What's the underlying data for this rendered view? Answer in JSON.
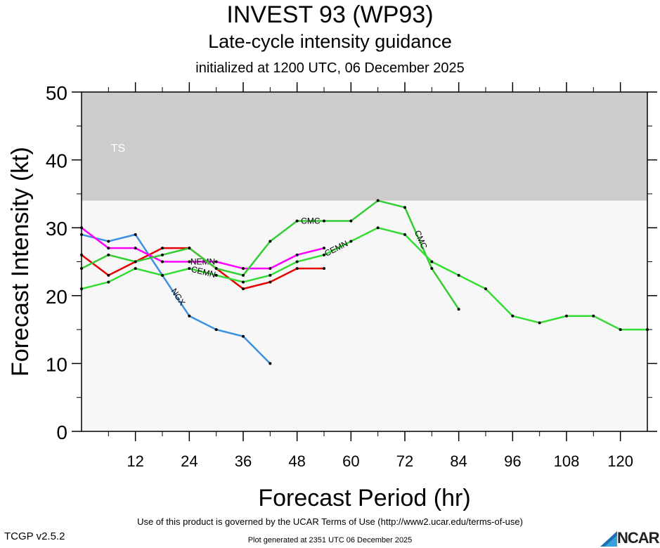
{
  "header": {
    "title": "INVEST 93 (WP93)",
    "subtitle": "Late-cycle intensity guidance",
    "initialized": "initialized at 1200 UTC, 06 December 2025"
  },
  "footer": {
    "terms": "Use of this product is governed by the UCAR Terms of Use (http://www2.ucar.edu/terms-of-use)",
    "generated": "Plot generated at 2351 UTC   06 December 2025",
    "version": "TCGP v2.5.2",
    "logo_text": "NCAR"
  },
  "chart_data": {
    "type": "line",
    "xlabel": "Forecast Period (hr)",
    "ylabel": "Forecast Intensity (kt)",
    "xlim": [
      0,
      126
    ],
    "ylim": [
      0,
      50
    ],
    "xticks": [
      12,
      24,
      36,
      48,
      60,
      72,
      84,
      96,
      108,
      120
    ],
    "yticks": [
      0,
      10,
      20,
      30,
      40,
      50
    ],
    "bands": [
      {
        "label": "TS",
        "from": 34,
        "to": 50,
        "color": "#cccccc"
      }
    ],
    "background_color": "#f7f7f7",
    "series": [
      {
        "name": "NGX",
        "color": "#3d8fe0",
        "x": [
          0,
          6,
          12,
          18,
          24,
          30,
          36,
          42
        ],
        "values": [
          29,
          28,
          29,
          23,
          17,
          15,
          14,
          10
        ],
        "label_at": 3
      },
      {
        "name": "",
        "color": "#e60000",
        "x": [
          0,
          6,
          12,
          18,
          24,
          30,
          36,
          42,
          48,
          54
        ],
        "values": [
          26,
          23,
          25,
          27,
          27,
          24,
          21,
          22,
          24,
          24
        ]
      },
      {
        "name": "NEMN",
        "color": "#ff00ff",
        "x": [
          0,
          6,
          12,
          18,
          24,
          30,
          36,
          42,
          48,
          54
        ],
        "values": [
          30,
          27,
          27,
          25,
          25,
          25,
          24,
          24,
          26,
          27
        ],
        "label_at": 4,
        "label2_at": 9
      },
      {
        "name": "CMC",
        "color": "#33cc33",
        "x": [
          0,
          6,
          12,
          18,
          24,
          30,
          36,
          42,
          48,
          54,
          60,
          66,
          72,
          78,
          84
        ],
        "values": [
          24,
          26,
          25,
          26,
          27,
          24,
          23,
          28,
          31,
          31,
          31,
          34,
          33,
          24,
          18
        ],
        "label_at": 8,
        "label2_at": 12
      },
      {
        "name": "CEMN",
        "color": "#33dd33",
        "x": [
          0,
          6,
          12,
          18,
          24,
          30,
          36,
          42,
          48,
          54,
          60,
          66,
          72,
          78,
          84,
          90,
          96,
          102,
          108,
          114,
          120,
          126
        ],
        "values": [
          21,
          22,
          24,
          23,
          24,
          23,
          22,
          23,
          25,
          26,
          28,
          30,
          29,
          25,
          23,
          21,
          17,
          16,
          17,
          17,
          15,
          15
        ],
        "label_at": 4,
        "label2_at": 9
      }
    ]
  }
}
